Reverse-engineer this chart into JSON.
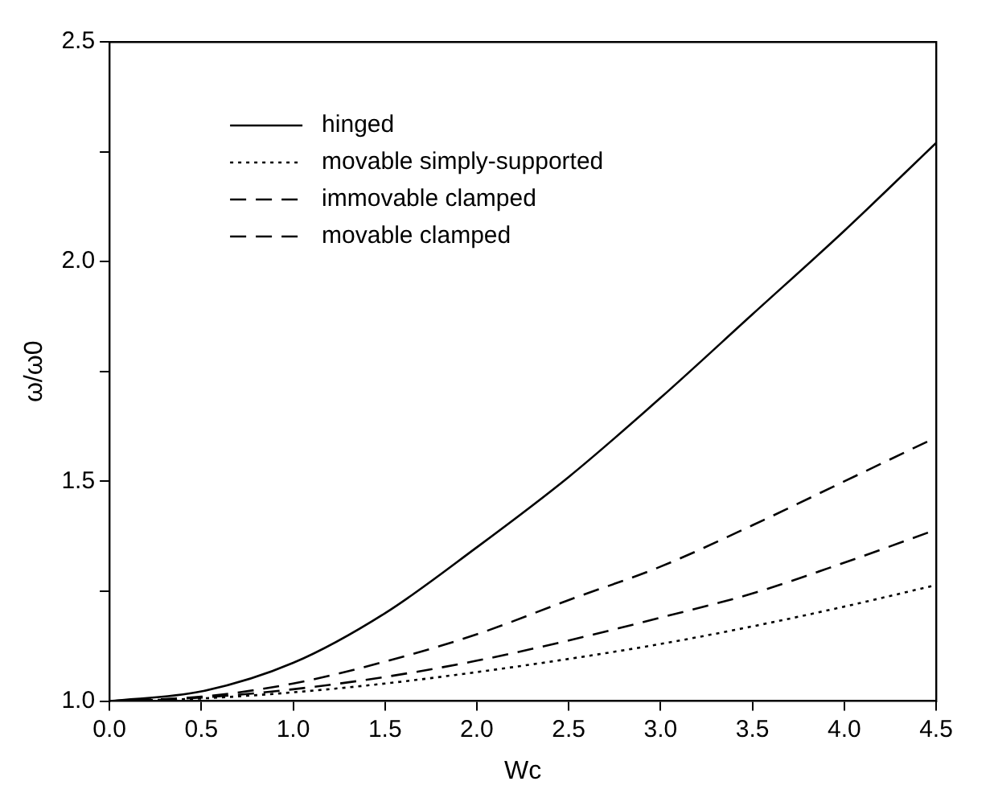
{
  "chart_data": {
    "type": "line",
    "xlabel": "Wc",
    "ylabel": "ω/ω0",
    "x": [
      0,
      0.5,
      1.0,
      1.5,
      2.0,
      2.5,
      3.0,
      3.5,
      4.0,
      4.5
    ],
    "series": [
      {
        "name": "hinged",
        "color": "#000000",
        "line_style": "solid",
        "values": [
          1.0,
          1.022,
          1.087,
          1.2,
          1.35,
          1.51,
          1.69,
          1.88,
          2.07,
          2.27
        ]
      },
      {
        "name": "movable simply-supported",
        "color": "#000000",
        "line_style": "dotted",
        "values": [
          1.0,
          1.006,
          1.02,
          1.04,
          1.066,
          1.096,
          1.13,
          1.17,
          1.215,
          1.264
        ]
      },
      {
        "name": "immovable clamped",
        "color": "#000000",
        "line_style": "dashed",
        "values": [
          1.0,
          1.01,
          1.04,
          1.09,
          1.152,
          1.23,
          1.306,
          1.4,
          1.5,
          1.6
        ]
      },
      {
        "name": "movable clamped",
        "color": "#000000",
        "line_style": "dashed",
        "values": [
          1.0,
          1.008,
          1.027,
          1.055,
          1.092,
          1.138,
          1.19,
          1.245,
          1.315,
          1.39
        ]
      }
    ],
    "xlim": [
      0,
      4.5
    ],
    "xticks": [
      {
        "value": 0,
        "label": "0.0"
      },
      0.5,
      {
        "value": 1,
        "label": "1.0"
      },
      1.5,
      {
        "value": 2,
        "label": "2.0"
      },
      2.5,
      {
        "value": 3,
        "label": "3.0"
      },
      3.5,
      {
        "value": 4,
        "label": "4.0"
      },
      4.5
    ],
    "ylim": [
      1.0,
      2.5
    ],
    "yticks": [
      {
        "value": 1,
        "label": "1.0"
      },
      {
        "value": 1.25,
        "label": null
      },
      1.5,
      {
        "value": 1.75,
        "label": null
      },
      {
        "value": 2,
        "label": "2.0"
      },
      {
        "value": 2.25,
        "label": null
      },
      2.5
    ],
    "grid": false,
    "legend": "top left",
    "marker": "none"
  }
}
